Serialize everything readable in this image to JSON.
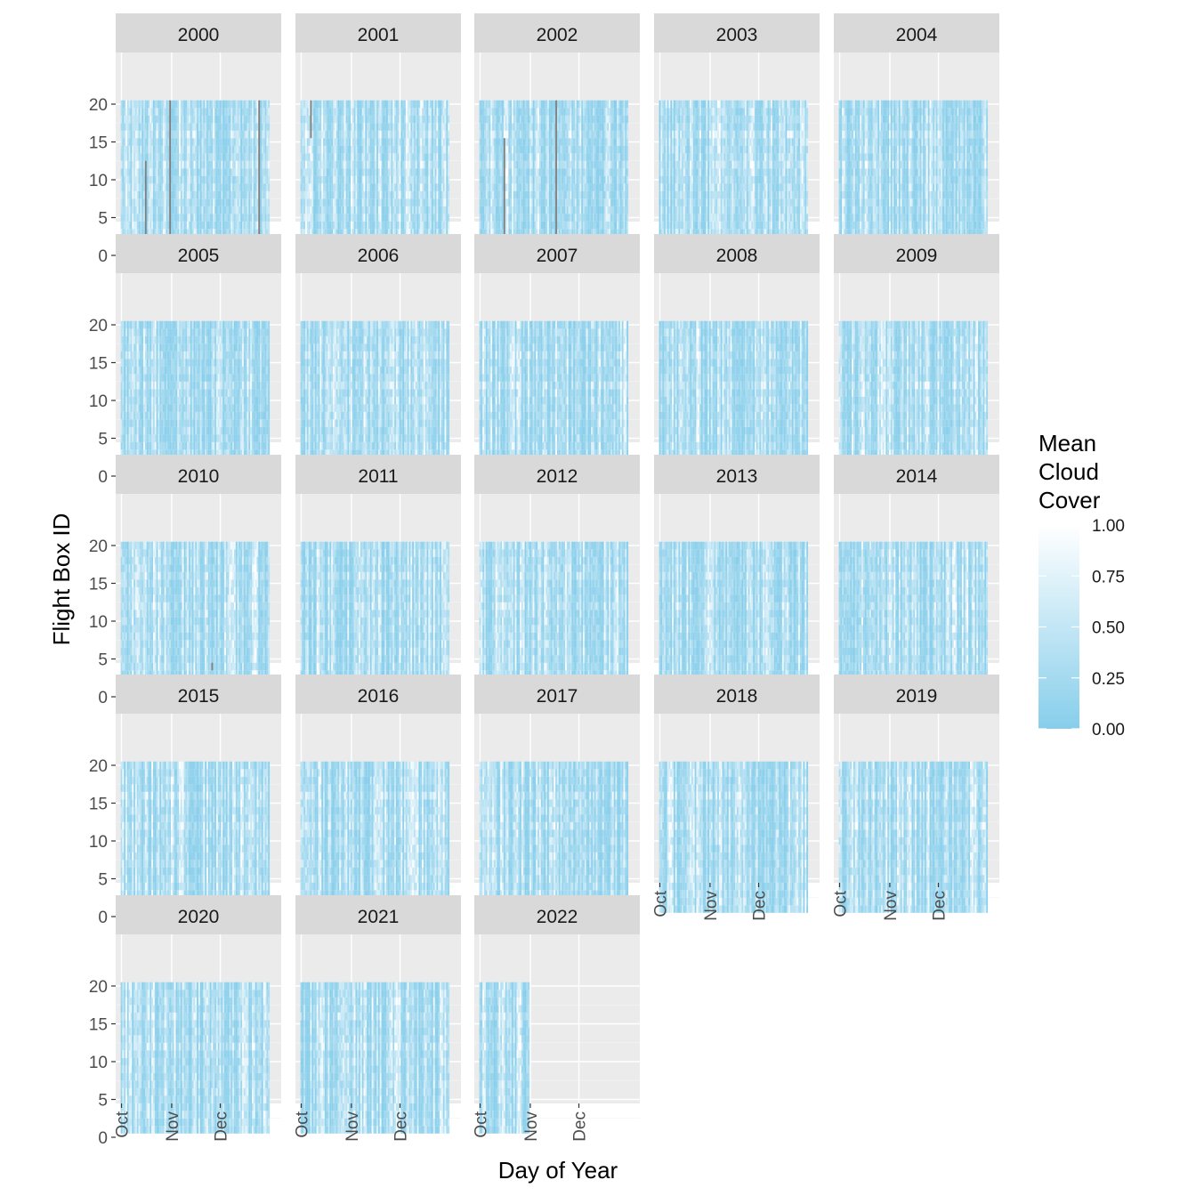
{
  "chart_data": {
    "type": "heatmap",
    "xlabel": "Day of Year",
    "ylabel": "Flight Box ID",
    "x_tick_labels": [
      "Oct",
      "Nov",
      "Dec"
    ],
    "y_tick_labels": [
      "0",
      "5",
      "10",
      "15",
      "20"
    ],
    "ylim": [
      0,
      20
    ],
    "flight_box_ids": [
      1,
      20
    ],
    "legend": {
      "title_lines": [
        "Mean",
        "Cloud",
        "Cover"
      ],
      "labels": [
        "1.00",
        "0.75",
        "0.50",
        "0.25",
        "0.00"
      ],
      "low_color": "#87ceeb",
      "high_color": "#ffffff",
      "range": [
        0,
        1
      ],
      "position": "right"
    },
    "missing_color": "#7f7f7f",
    "panels": [
      {
        "year": "2000",
        "days": 92,
        "missing_days": [
          15,
          30,
          85
        ],
        "missing_boxes": [
          [
            1,
            12
          ],
          [
            1,
            20
          ],
          [
            1,
            20
          ]
        ]
      },
      {
        "year": "2001",
        "days": 92,
        "missing_days": [
          6
        ],
        "missing_boxes": [
          [
            16,
            20
          ]
        ]
      },
      {
        "year": "2002",
        "days": 92,
        "missing_days": [
          15,
          47
        ],
        "missing_boxes": [
          [
            1,
            15
          ],
          [
            1,
            20
          ]
        ]
      },
      {
        "year": "2003",
        "days": 92
      },
      {
        "year": "2004",
        "days": 92
      },
      {
        "year": "2005",
        "days": 92
      },
      {
        "year": "2006",
        "days": 92
      },
      {
        "year": "2007",
        "days": 92
      },
      {
        "year": "2008",
        "days": 92
      },
      {
        "year": "2009",
        "days": 92
      },
      {
        "year": "2010",
        "days": 92,
        "missing_days": [
          56
        ],
        "missing_boxes": [
          [
            4,
            4
          ]
        ]
      },
      {
        "year": "2011",
        "days": 92
      },
      {
        "year": "2012",
        "days": 92
      },
      {
        "year": "2013",
        "days": 92
      },
      {
        "year": "2014",
        "days": 92
      },
      {
        "year": "2015",
        "days": 92
      },
      {
        "year": "2016",
        "days": 92
      },
      {
        "year": "2017",
        "days": 92
      },
      {
        "year": "2018",
        "days": 92
      },
      {
        "year": "2019",
        "days": 92
      },
      {
        "year": "2020",
        "days": 92
      },
      {
        "year": "2021",
        "days": 92
      },
      {
        "year": "2022",
        "days": 31
      }
    ]
  }
}
